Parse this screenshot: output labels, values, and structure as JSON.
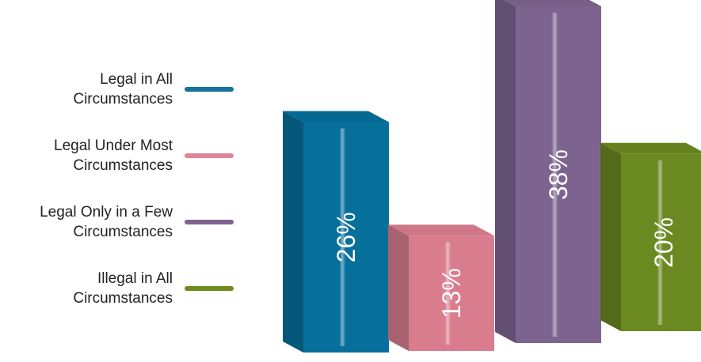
{
  "chart_data": {
    "type": "bar",
    "title": "",
    "xlabel": "",
    "ylabel": "",
    "ylim": [
      0,
      40
    ],
    "legend_position": "left",
    "grid": false,
    "categories": [
      "Legal in All Circumstances",
      "Legal Under Most Circumstances",
      "Legal Only in a Few Circumstances",
      "Illegal in All Circumstances"
    ],
    "legend": [
      {
        "lines": [
          "Legal in All",
          "Circumstances"
        ],
        "color": "#1474a0"
      },
      {
        "lines": [
          "Legal Under Most",
          "Circumstances"
        ],
        "color": "#dd8595"
      },
      {
        "lines": [
          "Legal Only in a Few",
          "Circumstances"
        ],
        "color": "#7f6290"
      },
      {
        "lines": [
          "Illegal in All",
          "Circumstances"
        ],
        "color": "#6f8a1f"
      }
    ],
    "values": [
      26,
      13,
      38,
      20
    ],
    "value_labels": [
      "26%",
      "13%",
      "38%",
      "20%"
    ],
    "colors": [
      "#066f9c",
      "#d97d8e",
      "#7d6490",
      "#6a8920"
    ]
  }
}
